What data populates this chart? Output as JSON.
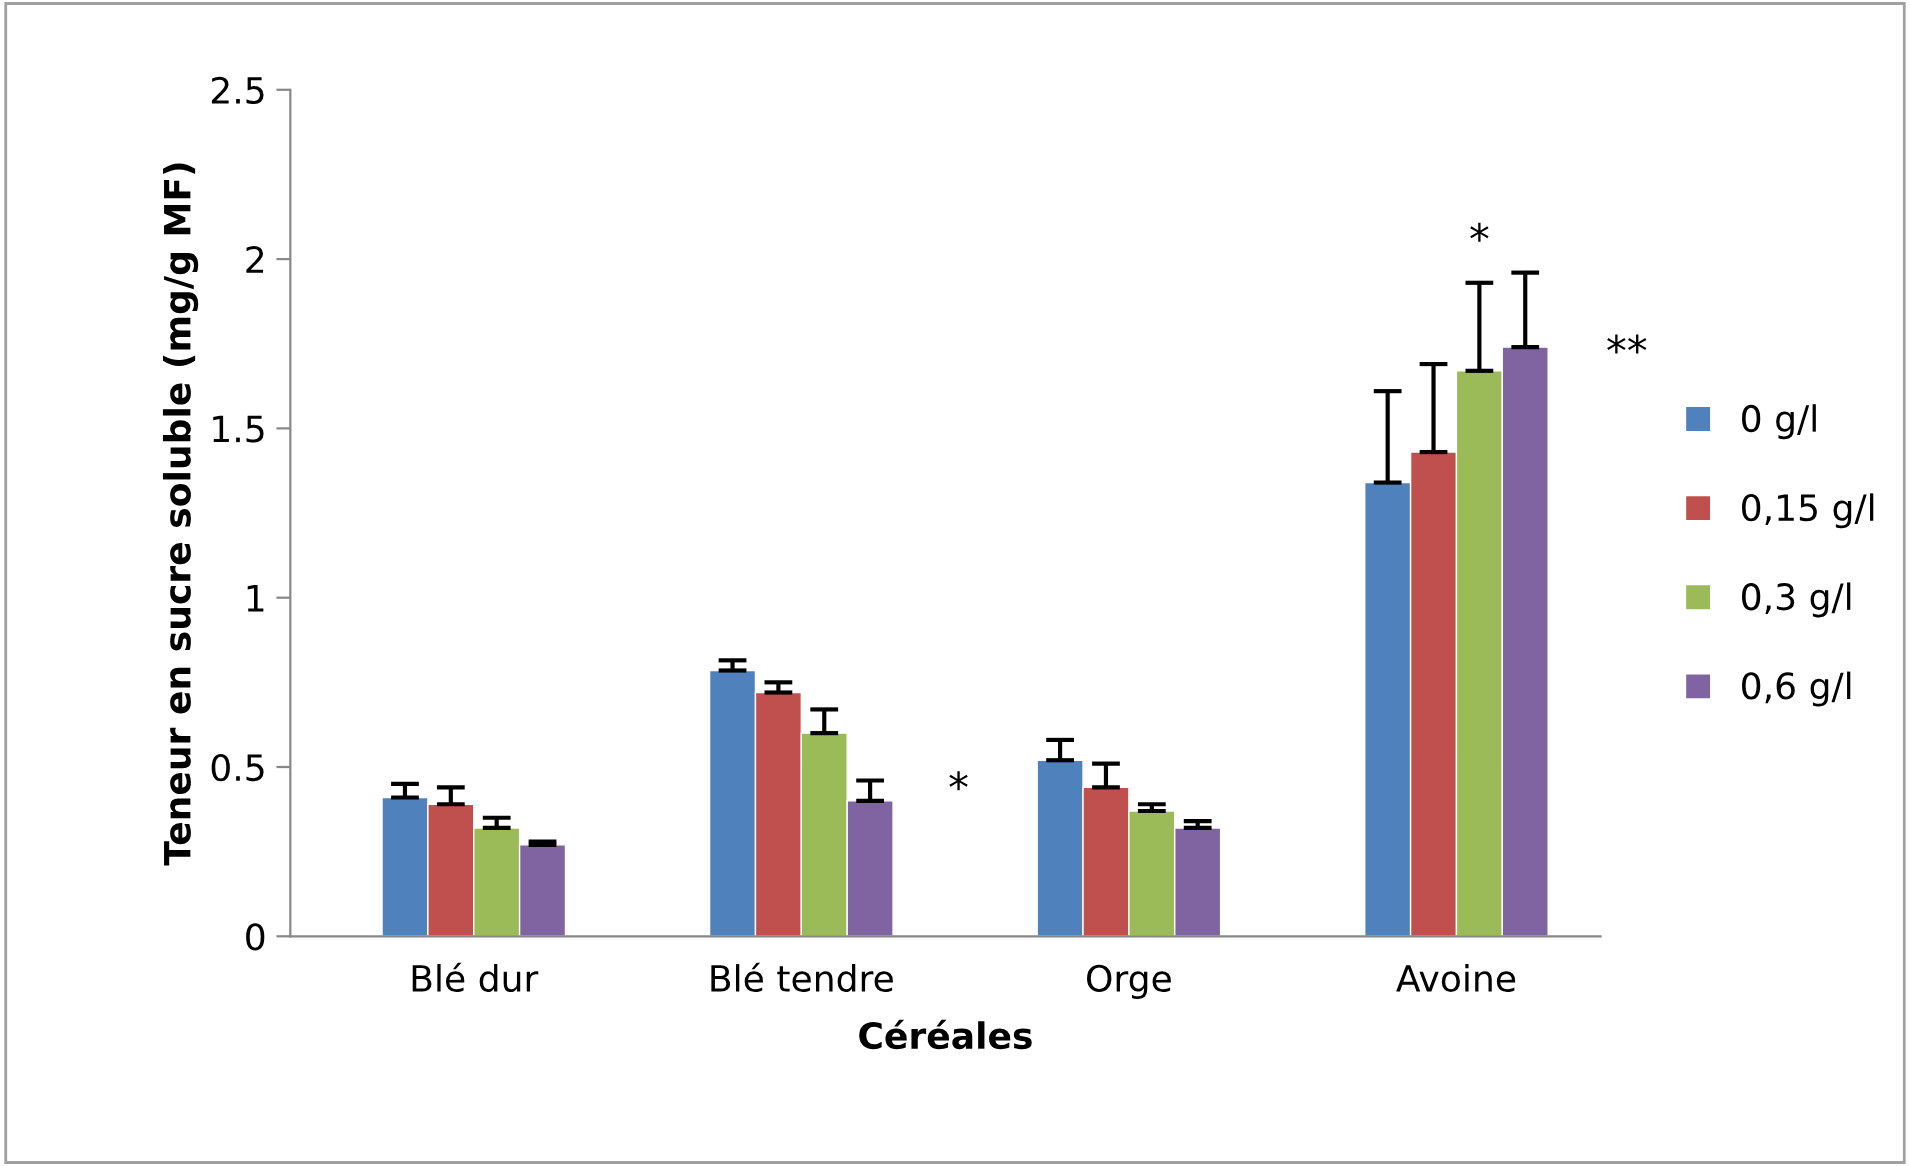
{
  "chart_data": {
    "type": "bar",
    "xlabel": "Céréales",
    "ylabel": "Teneur en sucre soluble (mg/g MF)",
    "categories": [
      "Blé dur",
      "Blé tendre",
      "Orge",
      "Avoine"
    ],
    "series": [
      {
        "name": "0 g/l",
        "color": "#4f81bd",
        "values": [
          0.41,
          0.785,
          0.52,
          1.34
        ],
        "errors": [
          0.04,
          0.03,
          0.06,
          0.27
        ]
      },
      {
        "name": "0,15 g/l",
        "color": "#c0504d",
        "values": [
          0.39,
          0.72,
          0.44,
          1.43
        ],
        "errors": [
          0.05,
          0.03,
          0.07,
          0.26
        ]
      },
      {
        "name": "0,3 g/l",
        "color": "#9bbb59",
        "values": [
          0.32,
          0.6,
          0.37,
          1.67
        ],
        "errors": [
          0.03,
          0.07,
          0.02,
          0.26
        ]
      },
      {
        "name": "0,6 g/l",
        "color": "#8064a2",
        "values": [
          0.27,
          0.4,
          0.32,
          1.74
        ],
        "errors": [
          0.01,
          0.06,
          0.02,
          0.22
        ]
      }
    ],
    "ylim": [
      0,
      2.5
    ],
    "yticks": [
      0,
      0.5,
      1,
      1.5,
      2,
      2.5
    ],
    "grid": false,
    "legend": "right",
    "annotations": [
      "*",
      "*",
      "**"
    ]
  }
}
